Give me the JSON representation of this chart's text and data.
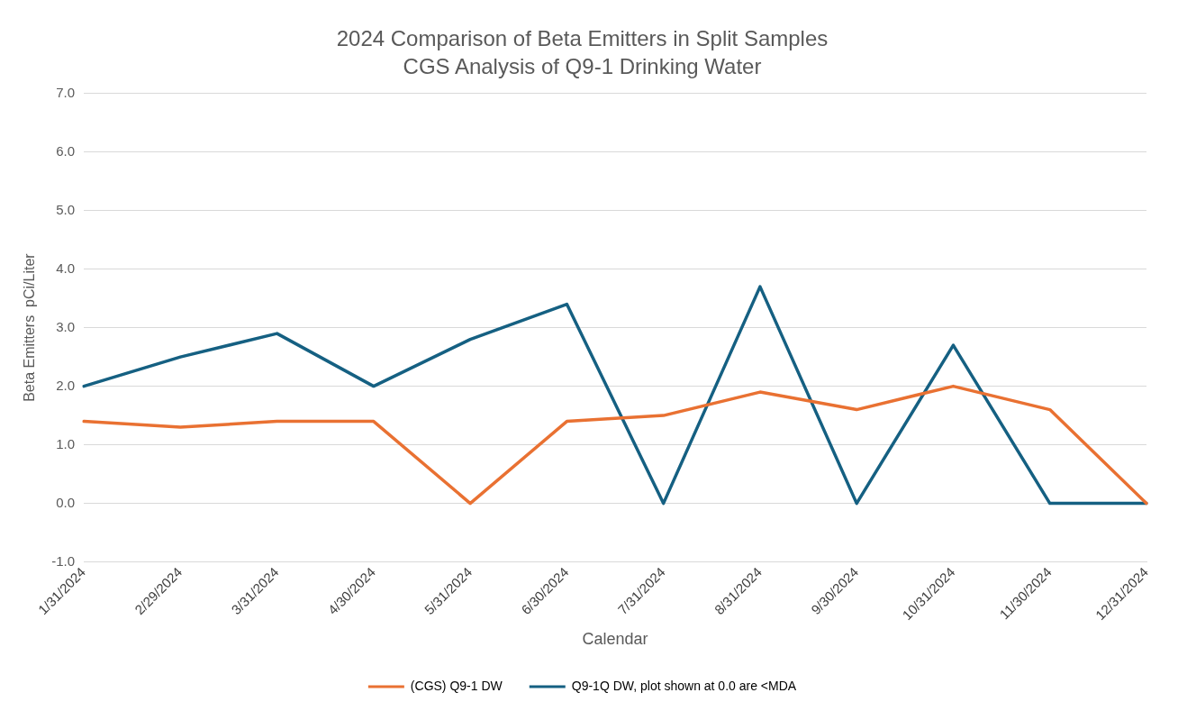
{
  "chart_data": {
    "type": "line",
    "title": "2024 Comparison of Beta Emitters in Split Samples",
    "subtitle": "CGS Analysis of Q9-1 Drinking Water",
    "xlabel": "Calendar",
    "ylabel": "Beta Emitters  pCi/Liter",
    "categories": [
      "1/31/2024",
      "2/29/2024",
      "3/31/2024",
      "4/30/2024",
      "5/31/2024",
      "6/30/2024",
      "7/31/2024",
      "8/31/2024",
      "9/30/2024",
      "10/31/2024",
      "11/30/2024",
      "12/31/2024"
    ],
    "series": [
      {
        "name": "(CGS) Q9-1 DW",
        "color": "#e97132",
        "values": [
          1.4,
          1.3,
          1.4,
          1.4,
          0,
          1.4,
          1.5,
          1.9,
          1.6,
          2.0,
          1.6,
          0
        ]
      },
      {
        "name": "Q9-1Q DW, plot shown at 0.0 are <MDA",
        "color": "#156082",
        "values": [
          2.0,
          2.5,
          2.9,
          2.0,
          2.8,
          3.4,
          0,
          3.7,
          0,
          2.7,
          0,
          0
        ]
      }
    ],
    "ylim": [
      -1,
      7
    ],
    "yticks": [
      {
        "value": -1,
        "label": "-1.0"
      },
      {
        "value": 0,
        "label": "0.0"
      },
      {
        "value": 1,
        "label": "1.0"
      },
      {
        "value": 2,
        "label": "2.0"
      },
      {
        "value": 3,
        "label": "3.0"
      },
      {
        "value": 4,
        "label": "4.0"
      },
      {
        "value": 5,
        "label": "5.0"
      },
      {
        "value": 6,
        "label": "6.0"
      },
      {
        "value": 7,
        "label": "7.0"
      }
    ],
    "grid": "y",
    "legend": "bottom",
    "marker": "none",
    "line_style": "solid"
  }
}
